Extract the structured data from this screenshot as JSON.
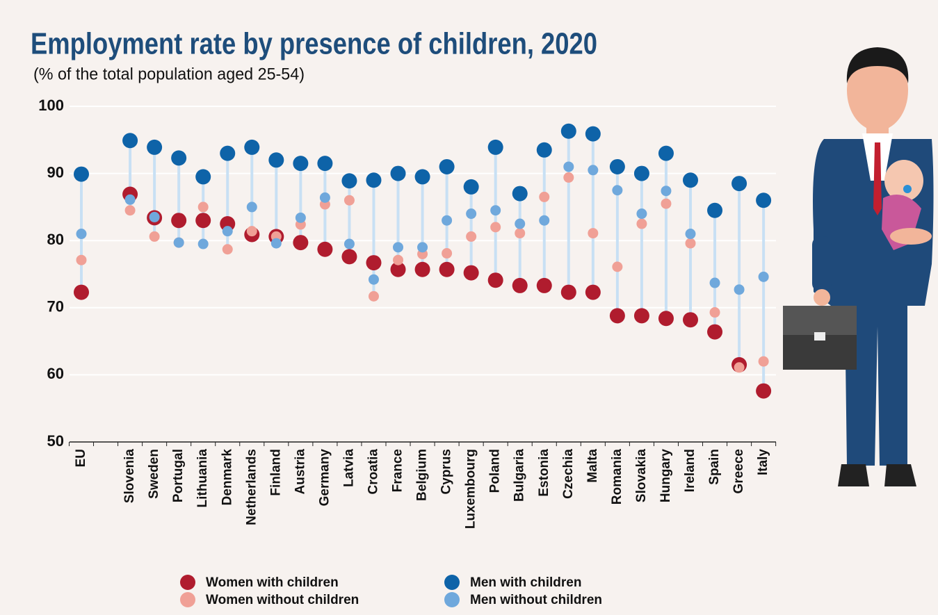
{
  "chart_data": {
    "type": "dot",
    "title": "Employment rate by presence of children, 2020",
    "subtitle": "(% of the total population aged 25-54)",
    "categories": [
      "EU",
      null,
      "Slovenia",
      "Sweden",
      "Portugal",
      "Lithuania",
      "Denmark",
      "Netherlands",
      "Finland",
      "Austria",
      "Germany",
      "Latvia",
      "Croatia",
      "France",
      "Belgium",
      "Cyprus",
      "Luxembourg",
      "Poland",
      "Bulgaria",
      "Estonia",
      "Czechia",
      "Malta",
      "Romania",
      "Slovakia",
      "Hungary",
      "Ireland",
      "Spain",
      "Greece",
      "Italy"
    ],
    "series": [
      {
        "name": "Women with children",
        "color": "#b01c2e",
        "values": [
          72.3,
          null,
          86.9,
          83.4,
          83.0,
          83.0,
          82.5,
          80.9,
          80.6,
          79.7,
          78.7,
          77.6,
          76.7,
          75.7,
          75.7,
          75.7,
          75.2,
          74.1,
          73.3,
          73.3,
          72.3,
          72.3,
          68.8,
          68.8,
          68.4,
          68.2,
          66.4,
          61.5,
          57.6
        ]
      },
      {
        "name": "Women without children",
        "color": "#f0a096",
        "values": [
          77.1,
          null,
          84.5,
          80.6,
          79.7,
          85.0,
          78.7,
          81.4,
          80.6,
          82.4,
          85.4,
          86.0,
          71.7,
          77.1,
          78.0,
          78.1,
          80.6,
          82.0,
          81.1,
          86.5,
          89.4,
          81.1,
          76.1,
          82.5,
          85.5,
          79.6,
          69.3,
          61.1,
          62.0
        ]
      },
      {
        "name": "Men with children",
        "color": "#0e63a8",
        "values": [
          89.9,
          null,
          94.9,
          93.9,
          92.3,
          89.5,
          93.0,
          93.9,
          92.0,
          91.5,
          91.5,
          88.9,
          89.0,
          90.0,
          89.5,
          91.0,
          88.0,
          93.9,
          87.0,
          93.5,
          96.3,
          95.9,
          91.0,
          90.0,
          93.0,
          89.0,
          84.5,
          88.5,
          86.0
        ]
      },
      {
        "name": "Men without children",
        "color": "#6fa8dc",
        "values": [
          81.0,
          null,
          86.1,
          83.5,
          79.7,
          79.5,
          81.4,
          85.0,
          79.6,
          83.4,
          86.4,
          79.5,
          74.2,
          79.0,
          79.0,
          83.0,
          84.0,
          84.5,
          82.5,
          83.0,
          91.0,
          90.5,
          87.5,
          84.0,
          87.4,
          81.0,
          73.7,
          72.7,
          74.6
        ]
      }
    ],
    "ylim": [
      50,
      100
    ],
    "yticks": [
      50,
      60,
      70,
      80,
      90,
      100
    ],
    "grid": true
  }
}
